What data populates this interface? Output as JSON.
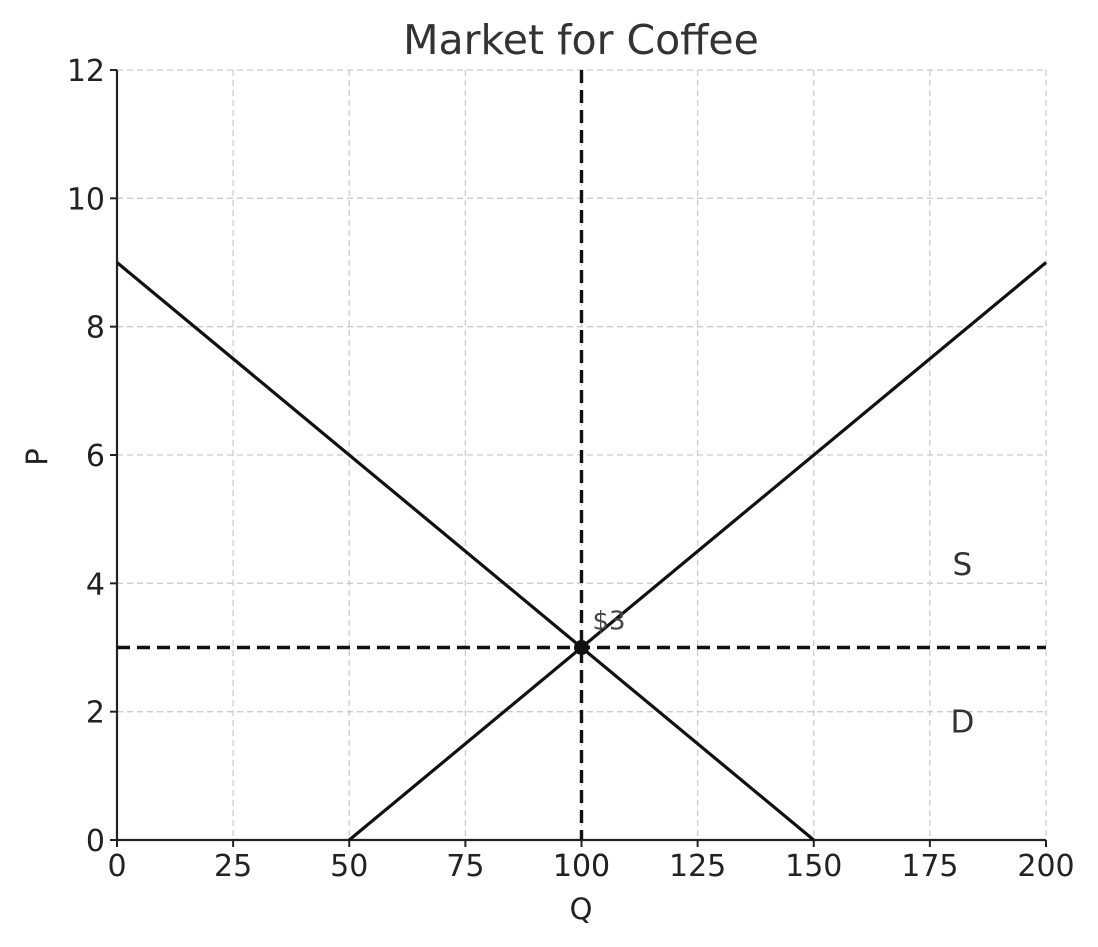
{
  "chart_data": {
    "type": "line",
    "title": "Market for Coffee",
    "xlabel": "Q",
    "ylabel": "P",
    "xlim": [
      0,
      200
    ],
    "ylim": [
      0,
      12
    ],
    "x_ticks": [
      0,
      25,
      50,
      75,
      100,
      125,
      150,
      175,
      200
    ],
    "y_ticks": [
      0,
      2,
      4,
      6,
      8,
      10,
      12
    ],
    "grid": true,
    "series": [
      {
        "name": "D",
        "x": [
          0,
          150
        ],
        "y": [
          9,
          0
        ]
      },
      {
        "name": "S",
        "x": [
          50,
          200
        ],
        "y": [
          0,
          9
        ]
      }
    ],
    "equilibrium": {
      "x": 100,
      "y": 3,
      "price_label": "$3",
      "quantity_label": "100"
    },
    "curve_labels": [
      {
        "text": "S",
        "x": 182,
        "y": 4.3
      },
      {
        "text": "D",
        "x": 182,
        "y": 1.85
      }
    ],
    "colors": {
      "curves": "#111111",
      "grid": "#cccccc",
      "text": "#222222"
    }
  }
}
